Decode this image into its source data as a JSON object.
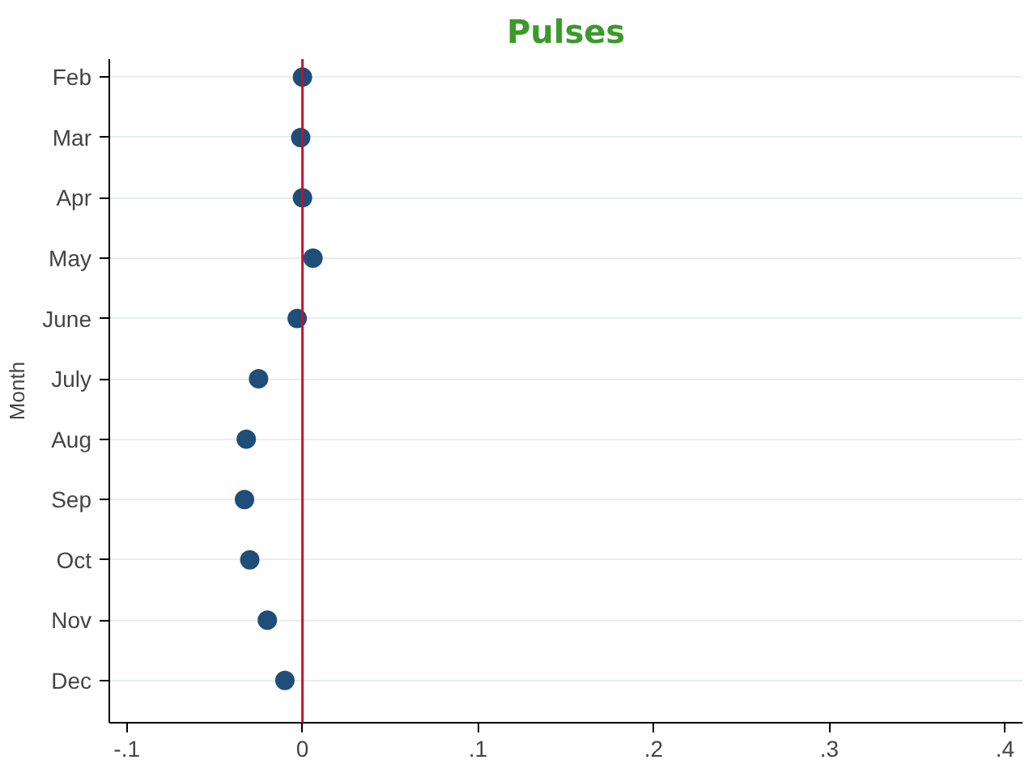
{
  "chart_data": {
    "type": "scatter",
    "title": "Pulses",
    "ylabel": "Month",
    "categories": [
      "Feb",
      "Mar",
      "Apr",
      "May",
      "June",
      "July",
      "Aug",
      "Sep",
      "Oct",
      "Nov",
      "Dec"
    ],
    "orientation": "horizontal",
    "series": [
      {
        "color": "#1f4e79",
        "values": [
          0.0,
          -0.001,
          0.0,
          0.006,
          -0.003,
          -0.025,
          -0.032,
          -0.033,
          -0.03,
          -0.02,
          -0.01
        ]
      }
    ],
    "xlim": [
      -0.11,
      0.41
    ],
    "xticks": [
      {
        "value": -0.1,
        "label": "-.1"
      },
      0,
      {
        "value": 0.1,
        "label": ".1"
      },
      {
        "value": 0.2,
        "label": ".2"
      },
      {
        "value": 0.3,
        "label": ".3"
      },
      {
        "value": 0.4,
        "label": ".4"
      }
    ],
    "ref_lines": [
      {
        "axis": "x",
        "value": 0,
        "color": "#c8102e"
      }
    ],
    "grid": "y",
    "marker": "circle"
  }
}
